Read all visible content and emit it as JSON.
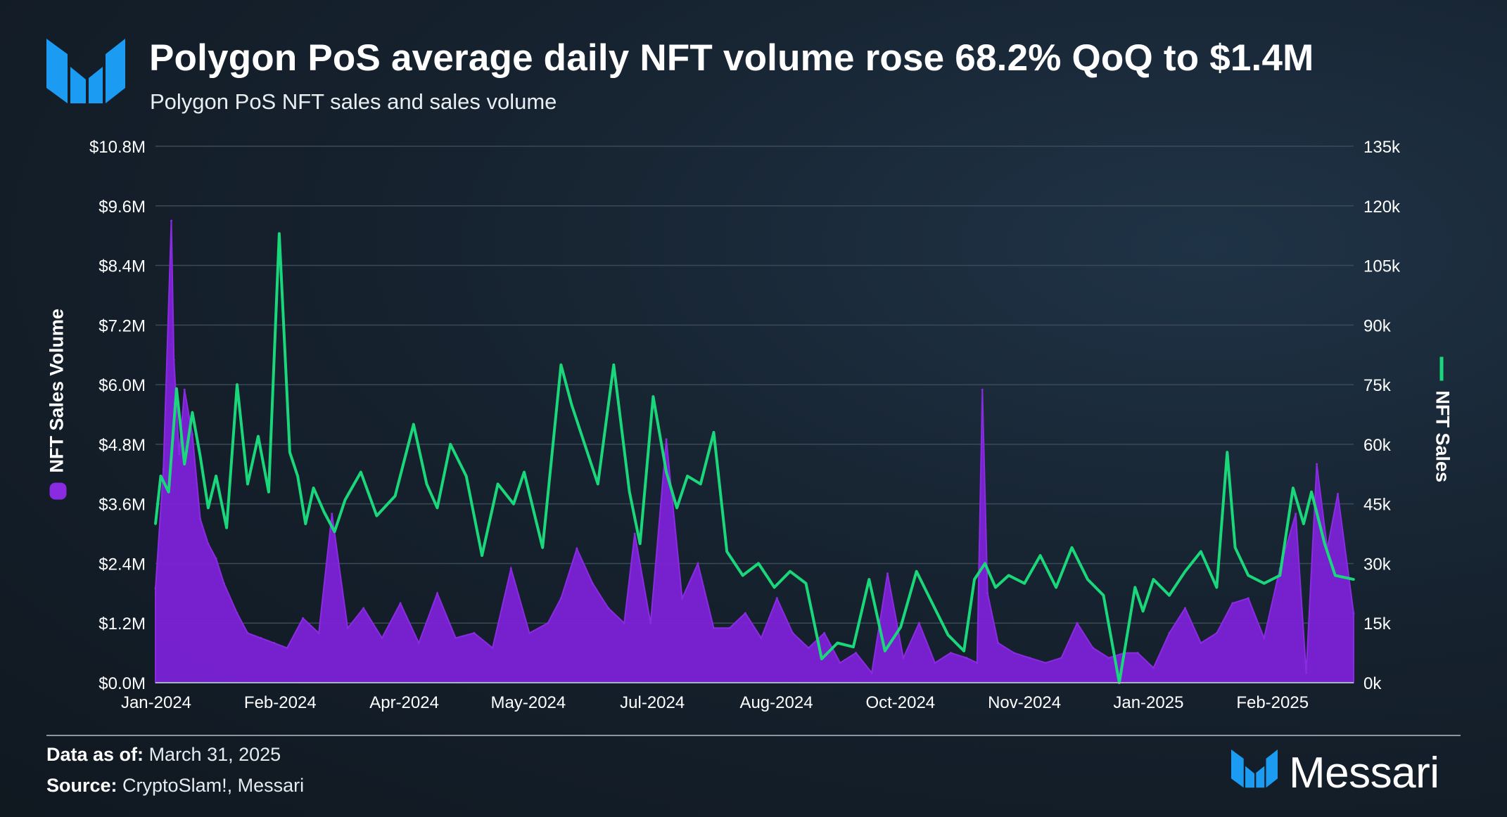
{
  "header": {
    "title": "Polygon PoS average daily NFT volume rose 68.2% QoQ to $1.4M",
    "subtitle": "Polygon PoS NFT sales and sales volume"
  },
  "footer": {
    "data_as_of_label": "Data as of:",
    "data_as_of_value": "March 31, 2025",
    "source_label": "Source:",
    "source_value": "CryptoSlam!, Messari",
    "brand": "Messari"
  },
  "colors": {
    "volume": "#8a2be2",
    "volume_fill": "#7b22d6",
    "sales": "#19d77a",
    "brand_blue": "#1b9cf2"
  },
  "chart_data": {
    "type": "area",
    "title": "Polygon PoS average daily NFT volume rose 68.2% QoQ to $1.4M",
    "subtitle": "Polygon PoS NFT sales and sales volume",
    "x_tick_labels": [
      "Jan-2024",
      "Feb-2024",
      "Apr-2024",
      "May-2024",
      "Jul-2024",
      "Aug-2024",
      "Oct-2024",
      "Nov-2024",
      "Jan-2025",
      "Feb-2025"
    ],
    "x_range": [
      "2024-01-01",
      "2025-03-31"
    ],
    "left_axis": {
      "label": "NFT Sales Volume",
      "ylim": [
        0,
        10.8
      ],
      "unit": "$M",
      "tick_labels": [
        "$0.0M",
        "$1.2M",
        "$2.4M",
        "$3.6M",
        "$4.8M",
        "$6.0M",
        "$7.2M",
        "$8.4M",
        "$9.6M",
        "$10.8M"
      ]
    },
    "right_axis": {
      "label": "NFT Sales",
      "ylim": [
        0,
        135000
      ],
      "tick_labels": [
        "0k",
        "15k",
        "30k",
        "45k",
        "60k",
        "75k",
        "90k",
        "105k",
        "120k",
        "135k"
      ]
    },
    "grid": true,
    "series": [
      {
        "name": "NFT Sales Volume",
        "type": "area",
        "axis": "left",
        "x": [
          "2024-01-01",
          "2024-01-04",
          "2024-01-07",
          "2024-01-08",
          "2024-01-10",
          "2024-01-12",
          "2024-01-15",
          "2024-01-18",
          "2024-01-21",
          "2024-01-24",
          "2024-01-27",
          "2024-02-01",
          "2024-02-05",
          "2024-02-10",
          "2024-02-15",
          "2024-02-20",
          "2024-02-26",
          "2024-03-03",
          "2024-03-08",
          "2024-03-14",
          "2024-03-20",
          "2024-03-27",
          "2024-04-03",
          "2024-04-10",
          "2024-04-17",
          "2024-04-24",
          "2024-05-01",
          "2024-05-08",
          "2024-05-15",
          "2024-05-22",
          "2024-05-29",
          "2024-06-03",
          "2024-06-09",
          "2024-06-15",
          "2024-06-21",
          "2024-06-27",
          "2024-07-01",
          "2024-07-07",
          "2024-07-13",
          "2024-07-19",
          "2024-07-25",
          "2024-07-31",
          "2024-08-06",
          "2024-08-12",
          "2024-08-18",
          "2024-08-24",
          "2024-08-30",
          "2024-09-05",
          "2024-09-11",
          "2024-09-17",
          "2024-09-23",
          "2024-09-29",
          "2024-10-05",
          "2024-10-11",
          "2024-10-17",
          "2024-10-23",
          "2024-10-29",
          "2024-11-04",
          "2024-11-08",
          "2024-11-10",
          "2024-11-12",
          "2024-11-16",
          "2024-11-22",
          "2024-11-28",
          "2024-12-04",
          "2024-12-10",
          "2024-12-16",
          "2024-12-22",
          "2024-12-28",
          "2025-01-03",
          "2025-01-08",
          "2025-01-14",
          "2025-01-20",
          "2025-01-26",
          "2025-02-01",
          "2025-02-07",
          "2025-02-13",
          "2025-02-19",
          "2025-02-25",
          "2025-03-03",
          "2025-03-09",
          "2025-03-13",
          "2025-03-17",
          "2025-03-21",
          "2025-03-25",
          "2025-03-31"
        ],
        "values": [
          1.9,
          4.3,
          9.3,
          6.5,
          4.6,
          5.9,
          5.0,
          3.3,
          2.8,
          2.5,
          2.0,
          1.4,
          1.0,
          0.9,
          0.8,
          0.7,
          1.3,
          1.0,
          3.4,
          1.1,
          1.5,
          0.9,
          1.6,
          0.8,
          1.8,
          0.9,
          1.0,
          0.7,
          2.3,
          1.0,
          1.2,
          1.7,
          2.7,
          2.0,
          1.5,
          1.2,
          3.0,
          1.2,
          4.9,
          1.7,
          2.4,
          1.1,
          1.1,
          1.4,
          0.9,
          1.7,
          1.0,
          0.7,
          1.0,
          0.4,
          0.6,
          0.2,
          2.2,
          0.5,
          1.2,
          0.4,
          0.6,
          0.5,
          0.4,
          5.9,
          1.8,
          0.8,
          0.6,
          0.5,
          0.4,
          0.5,
          1.2,
          0.7,
          0.5,
          0.6,
          0.6,
          0.3,
          1.0,
          1.5,
          0.8,
          1.0,
          1.6,
          1.7,
          0.9,
          2.3,
          3.4,
          0.2,
          4.4,
          2.7,
          3.8,
          1.4
        ]
      },
      {
        "name": "NFT Sales",
        "type": "line",
        "axis": "right",
        "x": [
          "2024-01-01",
          "2024-01-03",
          "2024-01-06",
          "2024-01-09",
          "2024-01-12",
          "2024-01-15",
          "2024-01-18",
          "2024-01-21",
          "2024-01-24",
          "2024-01-28",
          "2024-02-01",
          "2024-02-05",
          "2024-02-09",
          "2024-02-13",
          "2024-02-17",
          "2024-02-21",
          "2024-02-24",
          "2024-02-27",
          "2024-03-01",
          "2024-03-05",
          "2024-03-09",
          "2024-03-13",
          "2024-03-19",
          "2024-03-25",
          "2024-04-01",
          "2024-04-08",
          "2024-04-13",
          "2024-04-17",
          "2024-04-22",
          "2024-04-28",
          "2024-05-04",
          "2024-05-10",
          "2024-05-16",
          "2024-05-20",
          "2024-05-27",
          "2024-06-03",
          "2024-06-07",
          "2024-06-13",
          "2024-06-17",
          "2024-06-23",
          "2024-06-29",
          "2024-07-03",
          "2024-07-08",
          "2024-07-13",
          "2024-07-17",
          "2024-07-21",
          "2024-07-26",
          "2024-07-31",
          "2024-08-05",
          "2024-08-11",
          "2024-08-17",
          "2024-08-23",
          "2024-08-29",
          "2024-09-04",
          "2024-09-10",
          "2024-09-16",
          "2024-09-22",
          "2024-09-28",
          "2024-10-04",
          "2024-10-10",
          "2024-10-16",
          "2024-10-22",
          "2024-10-28",
          "2024-11-03",
          "2024-11-07",
          "2024-11-11",
          "2024-11-15",
          "2024-11-20",
          "2024-11-26",
          "2024-12-02",
          "2024-12-08",
          "2024-12-14",
          "2024-12-20",
          "2024-12-26",
          "2025-01-01",
          "2025-01-07",
          "2025-01-10",
          "2025-01-14",
          "2025-01-20",
          "2025-01-26",
          "2025-02-01",
          "2025-02-07",
          "2025-02-11",
          "2025-02-14",
          "2025-02-19",
          "2025-02-25",
          "2025-03-03",
          "2025-03-08",
          "2025-03-12",
          "2025-03-15",
          "2025-03-20",
          "2025-03-24",
          "2025-03-31"
        ],
        "values": [
          40000,
          52000,
          48000,
          74000,
          55000,
          68000,
          57000,
          44000,
          52000,
          39000,
          75000,
          50000,
          62000,
          48000,
          113000,
          58000,
          52000,
          40000,
          49000,
          43000,
          38000,
          46000,
          53000,
          42000,
          47000,
          65000,
          50000,
          44000,
          60000,
          52000,
          32000,
          50000,
          45000,
          53000,
          34000,
          80000,
          70000,
          58000,
          50000,
          80000,
          48000,
          35000,
          72000,
          53000,
          44000,
          52000,
          50000,
          63000,
          33000,
          27000,
          30000,
          24000,
          28000,
          25000,
          6000,
          10000,
          9000,
          26000,
          8000,
          14000,
          28000,
          20000,
          12000,
          8000,
          26000,
          30000,
          24000,
          27000,
          25000,
          32000,
          24000,
          34000,
          26000,
          22000,
          0,
          24000,
          18000,
          26000,
          22000,
          28000,
          33000,
          24000,
          58000,
          34000,
          27000,
          25000,
          27000,
          49000,
          40000,
          48000,
          35000,
          27000,
          26000
        ]
      }
    ]
  }
}
